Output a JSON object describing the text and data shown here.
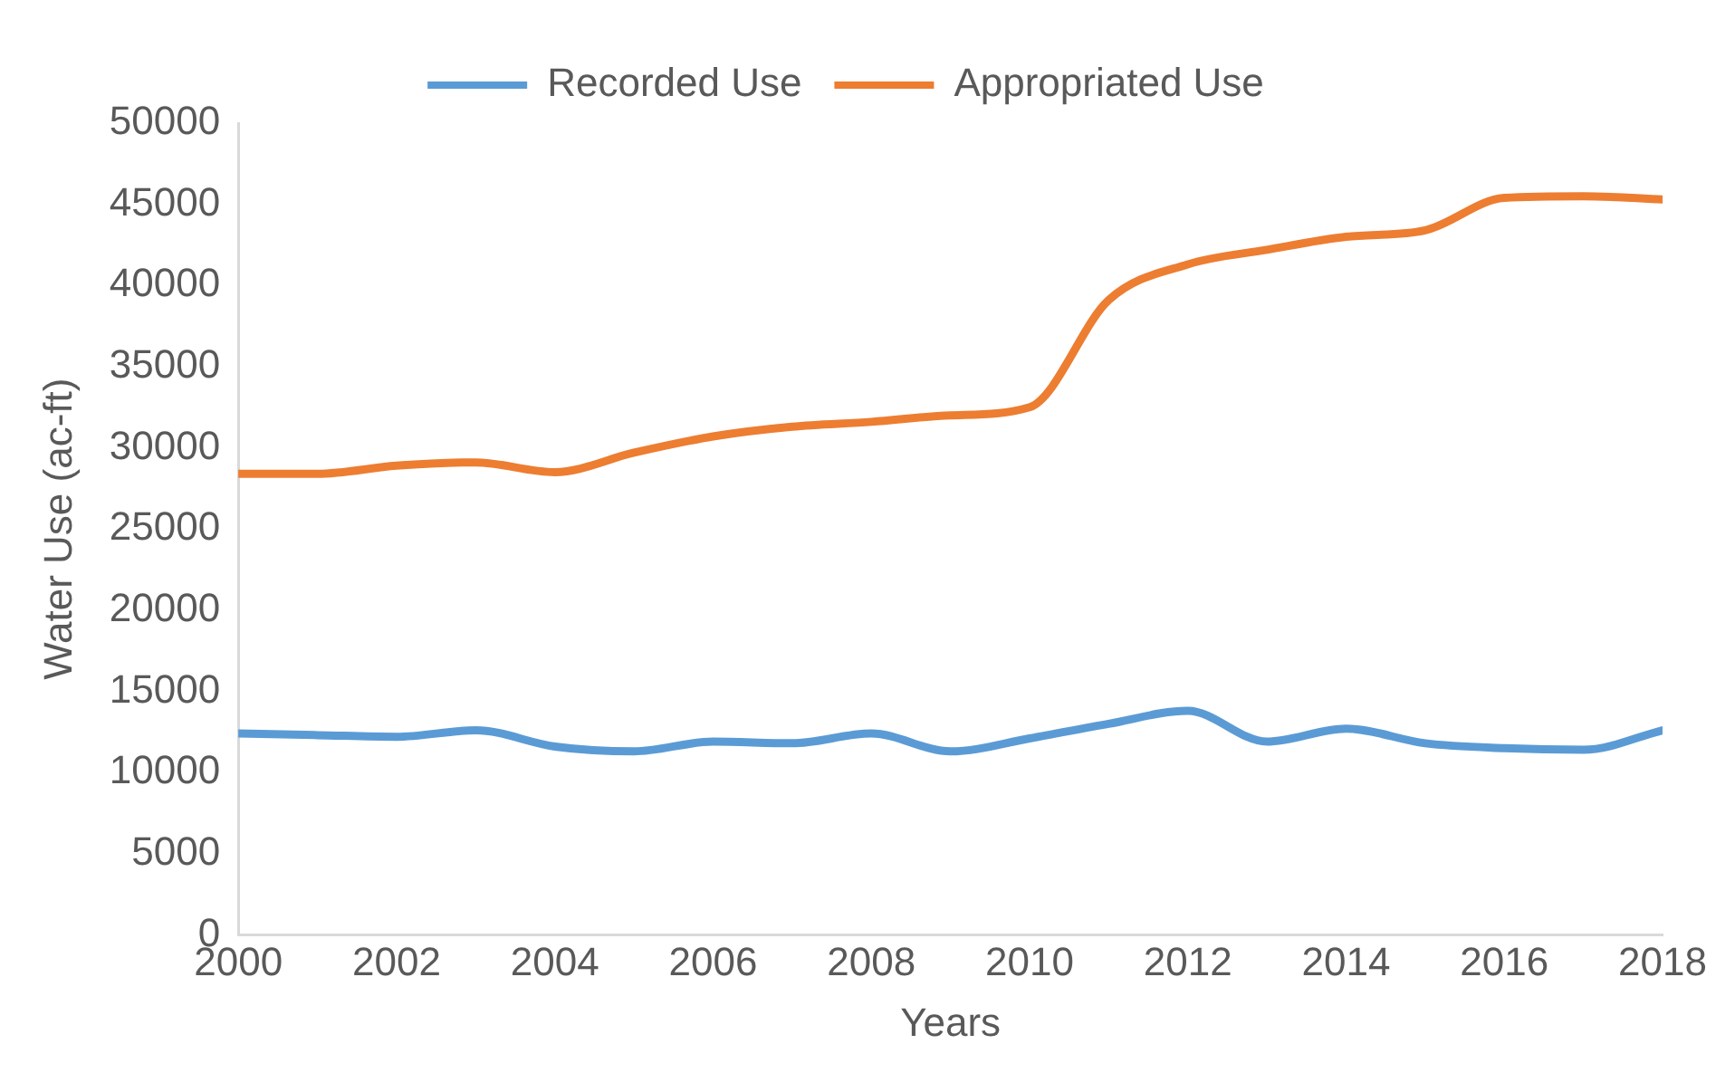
{
  "chart_data": {
    "type": "line",
    "xlabel": "Years",
    "ylabel": "Water Use (ac-ft)",
    "x": [
      2000,
      2001,
      2002,
      2003,
      2004,
      2005,
      2006,
      2007,
      2008,
      2009,
      2010,
      2011,
      2012,
      2013,
      2014,
      2015,
      2016,
      2017,
      2018
    ],
    "series": [
      {
        "name": "Recorded Use",
        "color": "#5b9bd5",
        "values": [
          12400,
          12300,
          12200,
          12600,
          11600,
          11300,
          11900,
          11800,
          12400,
          11300,
          12100,
          13000,
          13800,
          11900,
          12700,
          11800,
          11500,
          11400,
          12600
        ]
      },
      {
        "name": "Appropriated Use",
        "color": "#ed7d31",
        "values": [
          28400,
          28400,
          28900,
          29100,
          28500,
          29700,
          30700,
          31300,
          31600,
          32000,
          32500,
          39100,
          41300,
          42200,
          43000,
          43400,
          45400,
          45500,
          45300
        ]
      }
    ],
    "xlim": [
      2000,
      2018
    ],
    "xticks": [
      2000,
      2002,
      2004,
      2006,
      2008,
      2010,
      2012,
      2014,
      2016,
      2018
    ],
    "ylim": [
      0,
      50000
    ],
    "yticks": [
      0,
      5000,
      10000,
      15000,
      20000,
      25000,
      30000,
      35000,
      40000,
      45000,
      50000
    ],
    "grid": false,
    "legend": "top",
    "marker": "none",
    "line_style": "solid"
  }
}
